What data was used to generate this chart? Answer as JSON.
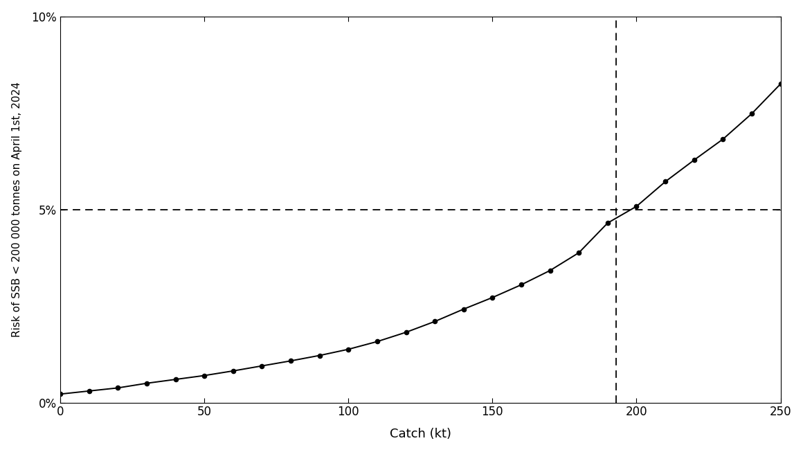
{
  "catch_kt": [
    0,
    10,
    20,
    30,
    40,
    50,
    60,
    70,
    80,
    90,
    100,
    110,
    120,
    130,
    140,
    150,
    160,
    170,
    180,
    190,
    200,
    210,
    220,
    230,
    240,
    250
  ],
  "risk_pct": [
    0.22,
    0.3,
    0.38,
    0.5,
    0.6,
    0.7,
    0.82,
    0.95,
    1.08,
    1.22,
    1.38,
    1.58,
    1.82,
    2.1,
    2.42,
    2.72,
    3.05,
    3.42,
    3.88,
    4.65,
    5.08,
    5.72,
    6.28,
    6.82,
    7.48,
    8.25
  ],
  "hline_y": 5.0,
  "vline_x": 193,
  "xlabel": "Catch (kt)",
  "ylabel": "Risk of SSB < 200 000 tonnes on April 1st, 2024",
  "xlim": [
    0,
    250
  ],
  "ylim": [
    0,
    10
  ],
  "xticks": [
    0,
    50,
    100,
    150,
    200,
    250
  ],
  "yticks": [
    0,
    5,
    10
  ],
  "ytick_labels": [
    "0%",
    "5%",
    "10%"
  ],
  "line_color": "#000000",
  "marker_color": "#000000",
  "dashed_color": "#000000",
  "bg_color": "#ffffff",
  "marker_size": 4.5,
  "line_width": 1.4
}
